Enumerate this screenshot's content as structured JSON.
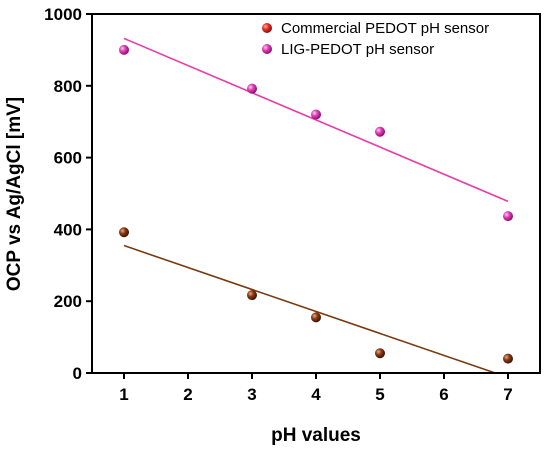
{
  "chart_data": {
    "type": "scatter",
    "xlabel": "pH values",
    "ylabel": "OCP vs Ag/AgCl [mV]",
    "xlim": [
      0.5,
      7.5
    ],
    "ylim": [
      0,
      1000
    ],
    "xticks": [
      1,
      2,
      3,
      4,
      5,
      6,
      7
    ],
    "yticks": [
      0,
      200,
      400,
      600,
      800,
      1000
    ],
    "legend_position": "top-right",
    "grid": false,
    "series": [
      {
        "name": "Commercial PEDOT pH sensor",
        "color": "#8b3a12",
        "legend_color": "#e8302a",
        "x": [
          1,
          3,
          4,
          5,
          7
        ],
        "y": [
          392,
          217,
          155,
          55,
          40
        ],
        "fit": {
          "x": [
            1,
            6.8
          ],
          "y": [
            355,
            0
          ],
          "color": "#7a3a10"
        }
      },
      {
        "name": "LIG-PEDOT pH sensor",
        "color": "#e040b8",
        "legend_color": "#e040b8",
        "x": [
          1,
          3,
          4,
          5,
          7
        ],
        "y": [
          900,
          792,
          720,
          672,
          437
        ],
        "fit": {
          "x": [
            1,
            7
          ],
          "y": [
            932,
            478
          ],
          "color": "#e83aa8"
        }
      }
    ]
  }
}
